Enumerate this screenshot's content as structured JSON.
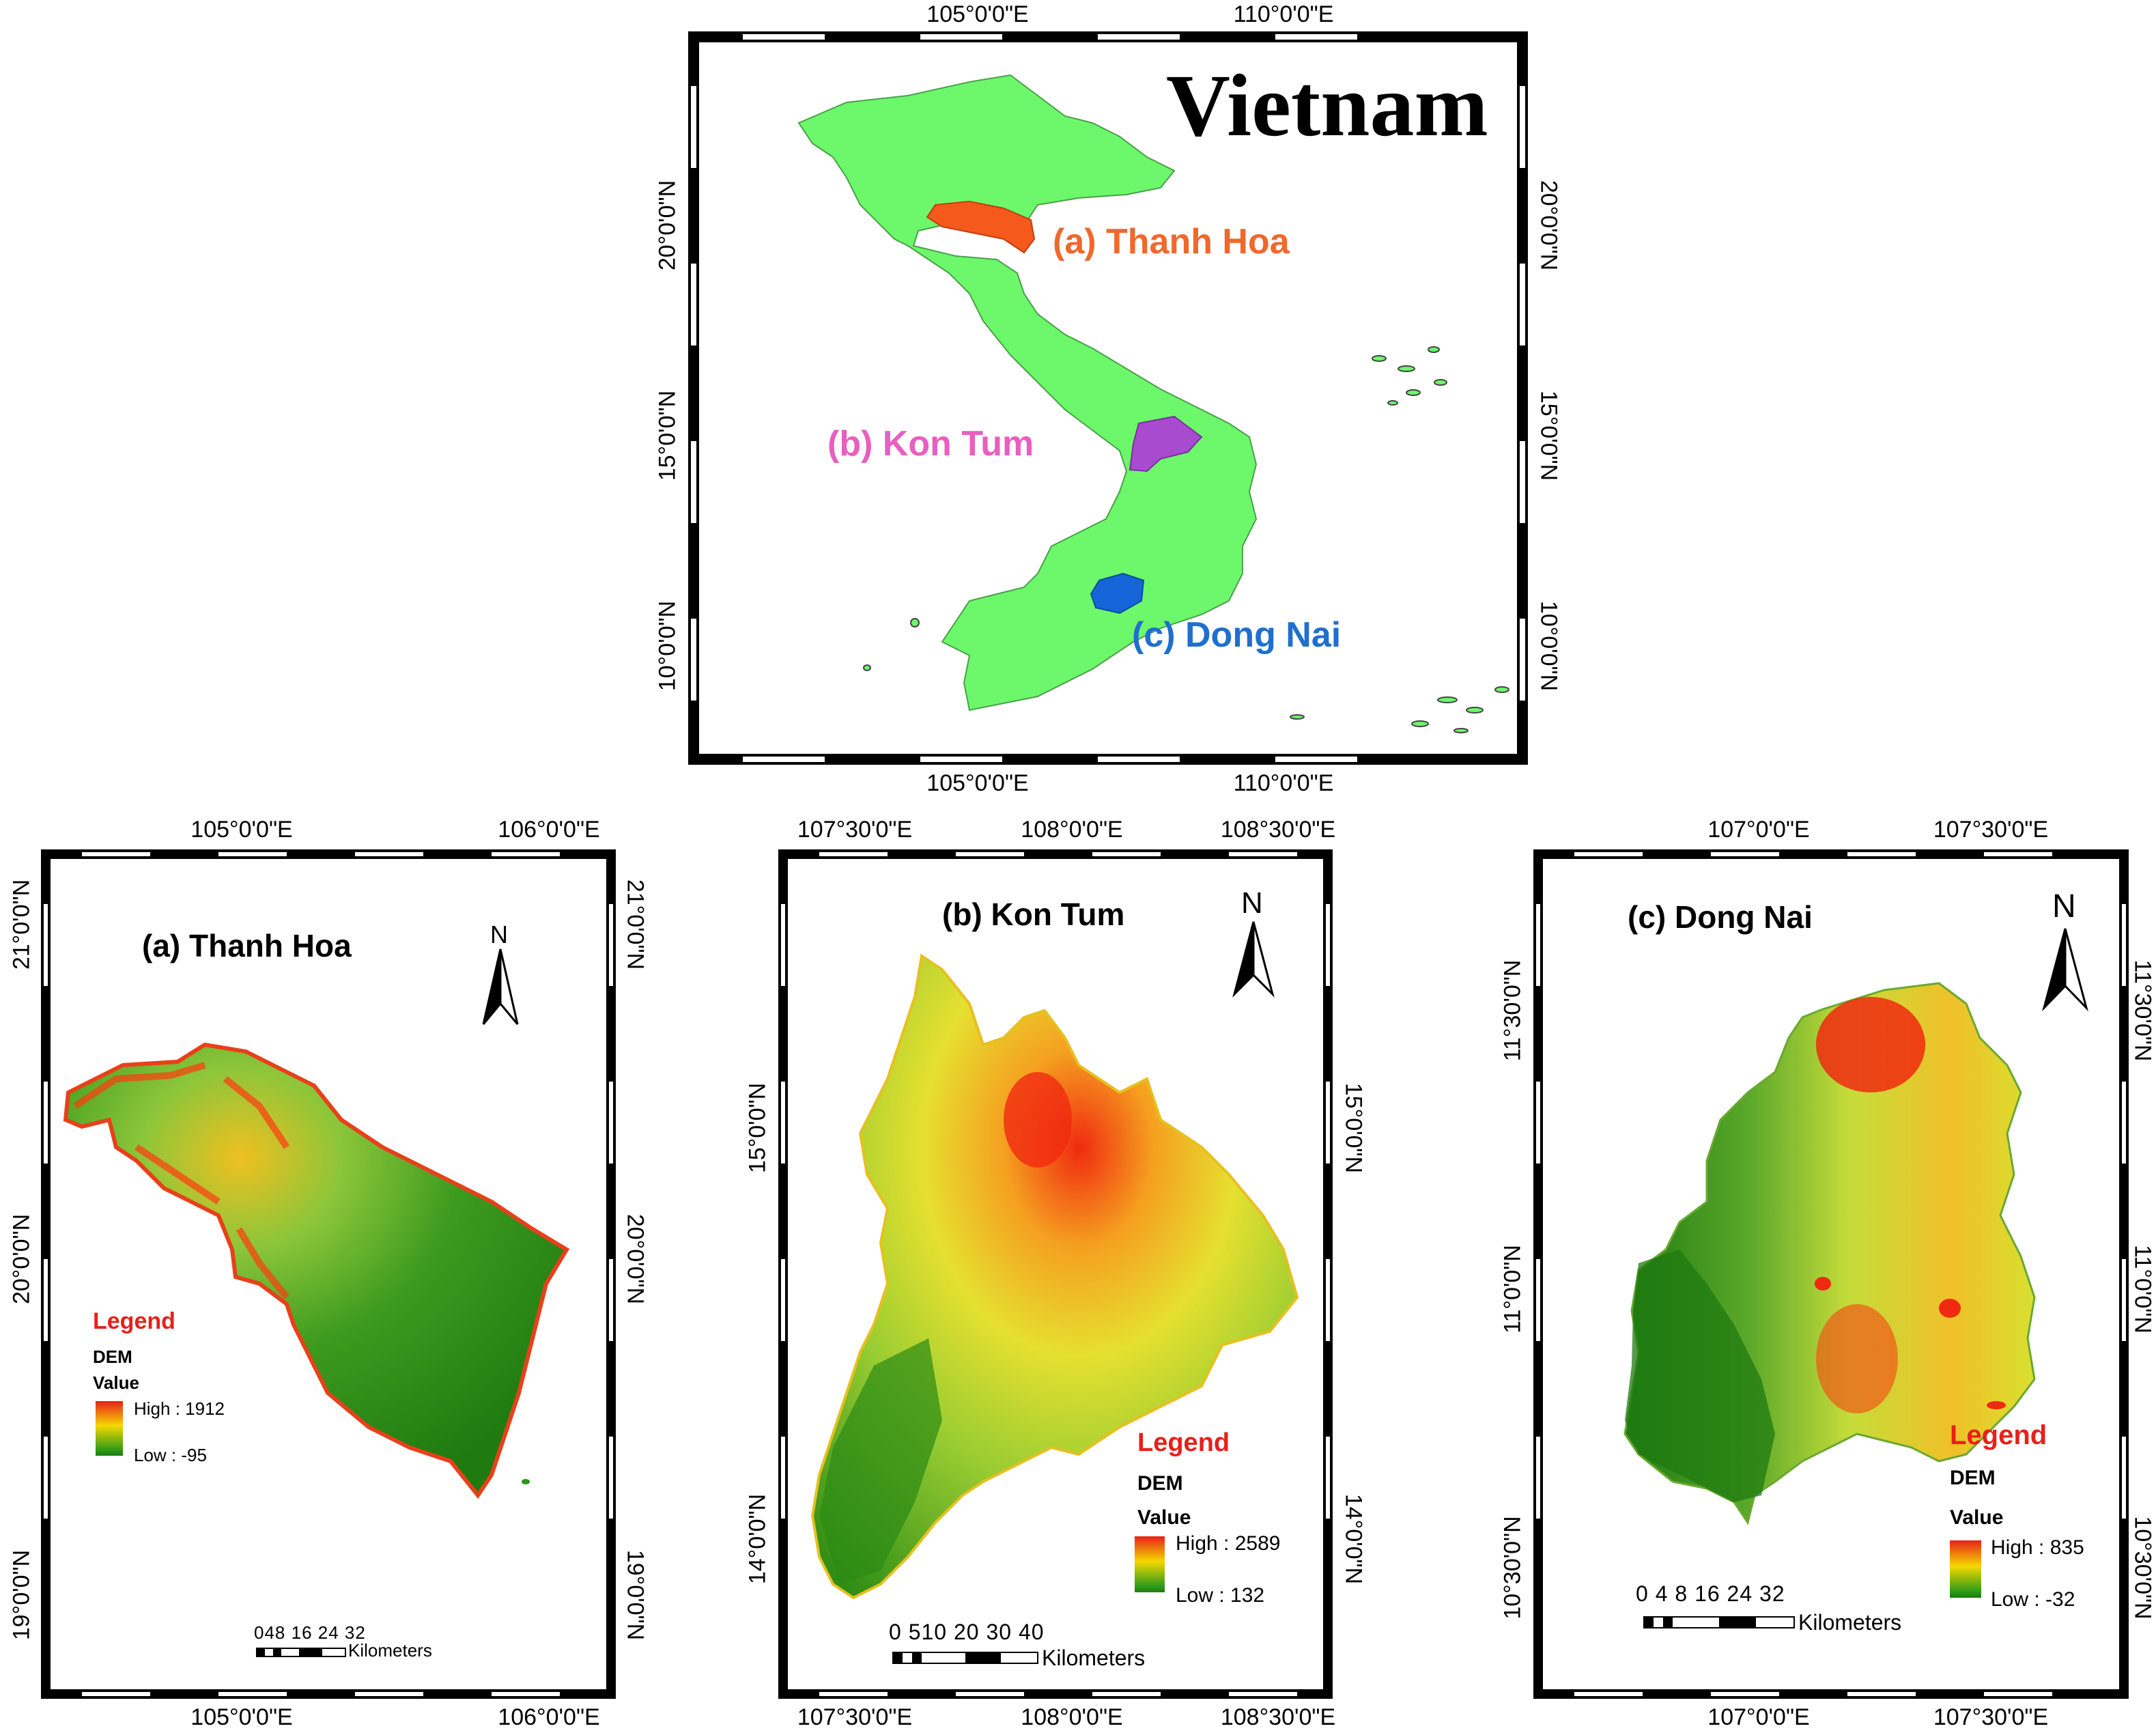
{
  "vietnam": {
    "title": "Vietnam",
    "lon_ticks": [
      "105°0'0\"E",
      "110°0'0\"E"
    ],
    "lat_ticks": [
      "20°0'0\"N",
      "15°0'0\"N",
      "10°0'0\"N"
    ],
    "callouts": {
      "a": "(a) Thanh Hoa",
      "b": "(b) Kon Tum",
      "c": "(c) Dong Nai"
    },
    "colors": {
      "land": "#6cf86a",
      "thanh_hoa": "#f5591b",
      "kon_tum": "#a94bcf",
      "dong_nai": "#1565d8",
      "label_a": "#f0682c",
      "label_b": "#e85fc0",
      "label_c": "#1f6fcf"
    }
  },
  "thanh_hoa": {
    "title": "(a) Thanh Hoa",
    "lon_ticks": [
      "105°0'0\"E",
      "106°0'0\"E"
    ],
    "lat_ticks": [
      "21°0'0\"N",
      "20°0'0\"N",
      "19°0'0\"N"
    ],
    "north": "N",
    "legend": {
      "title": "Legend",
      "layer": "DEM",
      "field": "Value",
      "high": "High : 1912",
      "low": "Low : -95"
    },
    "scale": {
      "numbers": "048  16 24 32",
      "unit": "Kilometers"
    }
  },
  "kon_tum": {
    "title": "(b) Kon Tum",
    "lon_ticks": [
      "107°30'0\"E",
      "108°0'0\"E",
      "108°30'0\"E"
    ],
    "lat_ticks": [
      "15°0'0\"N",
      "14°0'0\"N"
    ],
    "north": "N",
    "legend": {
      "title": "Legend",
      "layer": "DEM",
      "field": "Value",
      "high": "High : 2589",
      "low": "Low : 132"
    },
    "scale": {
      "numbers": "0 510  20  30  40",
      "unit": "Kilometers"
    }
  },
  "dong_nai": {
    "title": "(c) Dong Nai",
    "lon_ticks": [
      "107°0'0\"E",
      "107°30'0\"E"
    ],
    "lat_ticks": [
      "11°30'0\"N",
      "11°0'0\"N",
      "10°30'0\"N"
    ],
    "north": "N",
    "legend": {
      "title": "Legend",
      "layer": "DEM",
      "field": "Value",
      "high": "High : 835",
      "low": "Low : -32"
    },
    "scale": {
      "numbers": "0 4 8    16  24  32",
      "unit": "Kilometers"
    }
  }
}
